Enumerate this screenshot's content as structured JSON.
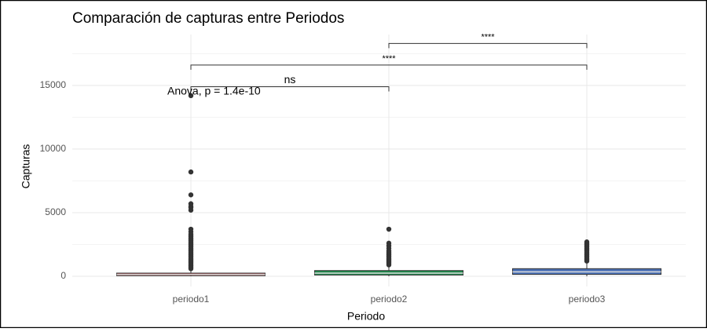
{
  "chart_data": {
    "type": "box",
    "title": "Comparación de capturas entre Periodos",
    "x_label": "Periodo",
    "y_label": "Capturas",
    "categories": [
      "periodo1",
      "periodo2",
      "periodo3"
    ],
    "colors": [
      "#b5494b",
      "#1f8a4c",
      "#4a70b5"
    ],
    "stats": [
      {
        "whisker_low": 0,
        "q1": 50,
        "median": 150,
        "q3": 250,
        "whisker_high": 550,
        "outliers": [
          600,
          700,
          800,
          900,
          1000,
          1100,
          1200,
          1300,
          1400,
          1500,
          1600,
          1700,
          1800,
          1900,
          2000,
          2100,
          2200,
          2300,
          2400,
          2500,
          2600,
          2700,
          2800,
          2900,
          3000,
          3100,
          3200,
          3300,
          3500,
          3700,
          5200,
          5400,
          5500,
          5700,
          6400,
          8200,
          14200
        ]
      },
      {
        "whisker_low": 0,
        "q1": 100,
        "median": 250,
        "q3": 450,
        "whisker_high": 800,
        "outliers": [
          900,
          1000,
          1100,
          1200,
          1300,
          1400,
          1500,
          1600,
          1700,
          1800,
          1900,
          2000,
          2200,
          2400,
          2600,
          3700
        ]
      },
      {
        "whisker_low": 0,
        "q1": 150,
        "median": 350,
        "q3": 600,
        "whisker_high": 1100,
        "outliers": [
          1200,
          1300,
          1400,
          1500,
          1600,
          1700,
          1800,
          1900,
          2000,
          2100,
          2200,
          2300,
          2400,
          2500,
          2600,
          2700
        ]
      }
    ],
    "ylim": [
      -800,
      19000
    ],
    "yticks": [
      0,
      5000,
      10000,
      15000
    ],
    "minor_yticks": [
      2500,
      7500,
      12500,
      17500
    ],
    "grid": true,
    "test_label": "Anova, p = 1.4e-10",
    "test_y": 14500,
    "comparisons": [
      {
        "from": 0,
        "to": 1,
        "label": "ns",
        "y": 14900
      },
      {
        "from": 0,
        "to": 2,
        "label": "****",
        "y": 16600
      },
      {
        "from": 1,
        "to": 2,
        "label": "****",
        "y": 18300
      }
    ]
  }
}
